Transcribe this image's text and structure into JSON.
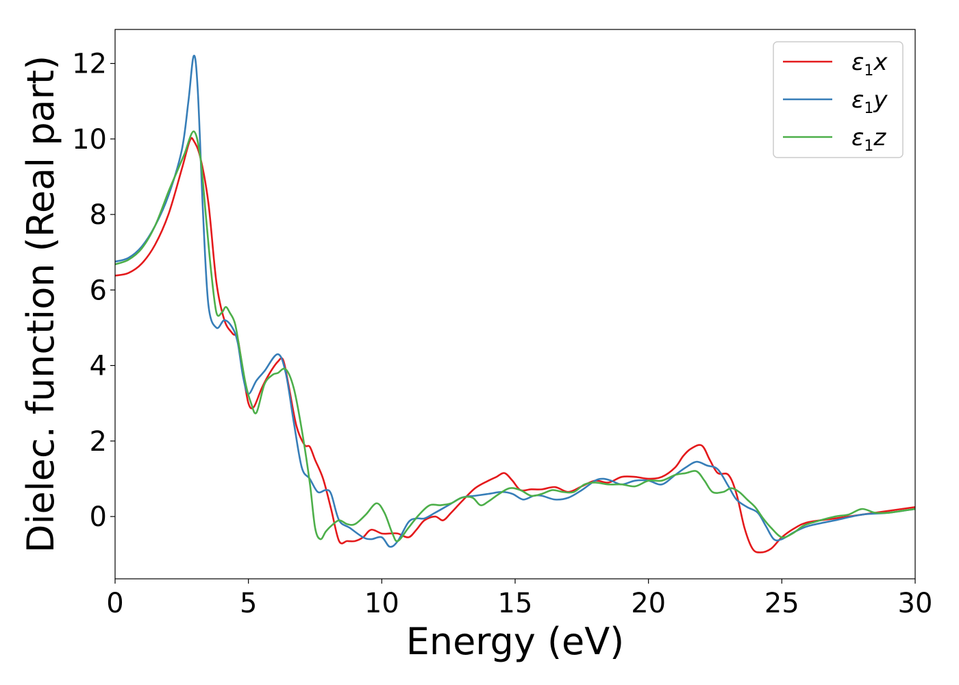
{
  "chart_data": {
    "type": "line",
    "xlabel": "Energy (eV)",
    "ylabel": "Dielec. function (Real part)",
    "xlim": [
      0,
      30
    ],
    "ylim": [
      -1.65,
      12.9
    ],
    "xticks": [
      "0",
      "5",
      "10",
      "15",
      "20",
      "25",
      "30"
    ],
    "yticks": [
      "0",
      "2",
      "4",
      "6",
      "8",
      "10",
      "12"
    ],
    "grid": false,
    "legend_position": "top-right",
    "series": [
      {
        "name": "ε1x",
        "legend_base": "ε",
        "legend_sub": "1",
        "legend_var": "x",
        "color": "#e41a1c",
        "points": [
          [
            0,
            6.38
          ],
          [
            0.5,
            6.45
          ],
          [
            1.0,
            6.7
          ],
          [
            1.5,
            7.2
          ],
          [
            2.0,
            8.0
          ],
          [
            2.5,
            9.2
          ],
          [
            2.8,
            9.95
          ],
          [
            2.95,
            9.95
          ],
          [
            3.2,
            9.5
          ],
          [
            3.5,
            8.3
          ],
          [
            3.8,
            6.2
          ],
          [
            4.1,
            5.2
          ],
          [
            4.4,
            4.85
          ],
          [
            4.6,
            4.7
          ],
          [
            4.8,
            3.8
          ],
          [
            5.0,
            3.0
          ],
          [
            5.2,
            2.9
          ],
          [
            5.5,
            3.4
          ],
          [
            5.8,
            3.8
          ],
          [
            6.1,
            4.1
          ],
          [
            6.3,
            4.15
          ],
          [
            6.5,
            3.5
          ],
          [
            6.8,
            2.4
          ],
          [
            7.1,
            1.9
          ],
          [
            7.3,
            1.85
          ],
          [
            7.5,
            1.5
          ],
          [
            7.8,
            1.0
          ],
          [
            8.1,
            0.2
          ],
          [
            8.4,
            -0.65
          ],
          [
            8.7,
            -0.65
          ],
          [
            9.0,
            -0.65
          ],
          [
            9.3,
            -0.55
          ],
          [
            9.6,
            -0.35
          ],
          [
            10.0,
            -0.45
          ],
          [
            10.3,
            -0.45
          ],
          [
            10.6,
            -0.45
          ],
          [
            11.0,
            -0.55
          ],
          [
            11.3,
            -0.35
          ],
          [
            11.6,
            -0.1
          ],
          [
            12.0,
            0.0
          ],
          [
            12.3,
            -0.1
          ],
          [
            12.6,
            0.1
          ],
          [
            13.0,
            0.4
          ],
          [
            13.5,
            0.75
          ],
          [
            14.0,
            0.95
          ],
          [
            14.3,
            1.05
          ],
          [
            14.6,
            1.15
          ],
          [
            14.9,
            0.95
          ],
          [
            15.2,
            0.7
          ],
          [
            15.6,
            0.72
          ],
          [
            16.0,
            0.72
          ],
          [
            16.5,
            0.78
          ],
          [
            17.0,
            0.65
          ],
          [
            17.5,
            0.8
          ],
          [
            18.0,
            0.95
          ],
          [
            18.5,
            0.9
          ],
          [
            19.0,
            1.05
          ],
          [
            19.5,
            1.05
          ],
          [
            20.0,
            1.0
          ],
          [
            20.5,
            1.05
          ],
          [
            21.0,
            1.3
          ],
          [
            21.3,
            1.6
          ],
          [
            21.6,
            1.8
          ],
          [
            22.0,
            1.88
          ],
          [
            22.3,
            1.5
          ],
          [
            22.6,
            1.15
          ],
          [
            23.0,
            1.1
          ],
          [
            23.3,
            0.6
          ],
          [
            23.6,
            -0.3
          ],
          [
            23.9,
            -0.85
          ],
          [
            24.2,
            -0.95
          ],
          [
            24.6,
            -0.85
          ],
          [
            25.0,
            -0.55
          ],
          [
            25.5,
            -0.3
          ],
          [
            26.0,
            -0.15
          ],
          [
            27.0,
            -0.05
          ],
          [
            28.0,
            0.05
          ],
          [
            29.0,
            0.15
          ],
          [
            30.0,
            0.25
          ]
        ]
      },
      {
        "name": "ε1y",
        "legend_base": "ε",
        "legend_sub": "1",
        "legend_var": "y",
        "color": "#377eb8",
        "points": [
          [
            0,
            6.75
          ],
          [
            0.5,
            6.85
          ],
          [
            1.0,
            7.15
          ],
          [
            1.5,
            7.7
          ],
          [
            2.0,
            8.5
          ],
          [
            2.5,
            9.7
          ],
          [
            2.75,
            11.0
          ],
          [
            2.95,
            12.2
          ],
          [
            3.1,
            11.3
          ],
          [
            3.3,
            8.0
          ],
          [
            3.5,
            5.6
          ],
          [
            3.8,
            5.0
          ],
          [
            4.1,
            5.2
          ],
          [
            4.4,
            5.0
          ],
          [
            4.6,
            4.6
          ],
          [
            4.8,
            3.7
          ],
          [
            5.0,
            3.25
          ],
          [
            5.3,
            3.6
          ],
          [
            5.6,
            3.85
          ],
          [
            6.1,
            4.3
          ],
          [
            6.4,
            3.8
          ],
          [
            6.7,
            2.5
          ],
          [
            7.0,
            1.3
          ],
          [
            7.3,
            1.0
          ],
          [
            7.6,
            0.65
          ],
          [
            7.9,
            0.7
          ],
          [
            8.1,
            0.6
          ],
          [
            8.4,
            -0.1
          ],
          [
            8.8,
            -0.3
          ],
          [
            9.3,
            -0.55
          ],
          [
            9.6,
            -0.6
          ],
          [
            10.0,
            -0.55
          ],
          [
            10.3,
            -0.8
          ],
          [
            10.6,
            -0.65
          ],
          [
            11.0,
            -0.15
          ],
          [
            11.3,
            -0.05
          ],
          [
            11.6,
            -0.05
          ],
          [
            12.0,
            0.1
          ],
          [
            12.5,
            0.3
          ],
          [
            13.0,
            0.5
          ],
          [
            13.5,
            0.55
          ],
          [
            14.0,
            0.6
          ],
          [
            14.5,
            0.65
          ],
          [
            14.9,
            0.6
          ],
          [
            15.3,
            0.45
          ],
          [
            15.7,
            0.55
          ],
          [
            16.0,
            0.55
          ],
          [
            16.5,
            0.45
          ],
          [
            17.0,
            0.5
          ],
          [
            17.5,
            0.7
          ],
          [
            18.0,
            0.95
          ],
          [
            18.3,
            1.0
          ],
          [
            18.6,
            0.95
          ],
          [
            19.0,
            0.85
          ],
          [
            19.5,
            0.95
          ],
          [
            20.0,
            0.95
          ],
          [
            20.5,
            0.85
          ],
          [
            21.0,
            1.1
          ],
          [
            21.4,
            1.3
          ],
          [
            21.8,
            1.45
          ],
          [
            22.2,
            1.35
          ],
          [
            22.6,
            1.25
          ],
          [
            23.0,
            0.8
          ],
          [
            23.3,
            0.45
          ],
          [
            23.7,
            0.25
          ],
          [
            24.1,
            0.1
          ],
          [
            24.4,
            -0.25
          ],
          [
            24.7,
            -0.6
          ],
          [
            25.0,
            -0.6
          ],
          [
            25.5,
            -0.4
          ],
          [
            26.0,
            -0.25
          ],
          [
            27.0,
            -0.1
          ],
          [
            28.0,
            0.05
          ],
          [
            29.0,
            0.1
          ],
          [
            30.0,
            0.2
          ]
        ]
      },
      {
        "name": "ε1z",
        "legend_base": "ε",
        "legend_sub": "1",
        "legend_var": "z",
        "color": "#4daf4a",
        "points": [
          [
            0,
            6.68
          ],
          [
            0.5,
            6.8
          ],
          [
            1.0,
            7.1
          ],
          [
            1.5,
            7.7
          ],
          [
            2.0,
            8.6
          ],
          [
            2.3,
            9.1
          ],
          [
            2.6,
            9.6
          ],
          [
            2.95,
            10.2
          ],
          [
            3.2,
            9.5
          ],
          [
            3.4,
            8.0
          ],
          [
            3.6,
            6.5
          ],
          [
            3.8,
            5.4
          ],
          [
            4.0,
            5.4
          ],
          [
            4.15,
            5.55
          ],
          [
            4.3,
            5.4
          ],
          [
            4.5,
            5.1
          ],
          [
            4.7,
            4.3
          ],
          [
            4.9,
            3.5
          ],
          [
            5.1,
            3.0
          ],
          [
            5.3,
            2.75
          ],
          [
            5.6,
            3.5
          ],
          [
            5.9,
            3.75
          ],
          [
            6.1,
            3.8
          ],
          [
            6.4,
            3.9
          ],
          [
            6.7,
            3.4
          ],
          [
            7.0,
            2.3
          ],
          [
            7.3,
            0.9
          ],
          [
            7.5,
            -0.3
          ],
          [
            7.7,
            -0.6
          ],
          [
            7.9,
            -0.4
          ],
          [
            8.1,
            -0.25
          ],
          [
            8.4,
            -0.1
          ],
          [
            8.7,
            -0.2
          ],
          [
            9.0,
            -0.2
          ],
          [
            9.4,
            0.05
          ],
          [
            9.8,
            0.35
          ],
          [
            10.1,
            0.1
          ],
          [
            10.4,
            -0.45
          ],
          [
            10.6,
            -0.65
          ],
          [
            11.0,
            -0.3
          ],
          [
            11.4,
            0.05
          ],
          [
            11.8,
            0.3
          ],
          [
            12.2,
            0.3
          ],
          [
            12.6,
            0.35
          ],
          [
            13.0,
            0.5
          ],
          [
            13.4,
            0.5
          ],
          [
            13.7,
            0.3
          ],
          [
            14.0,
            0.4
          ],
          [
            14.4,
            0.6
          ],
          [
            14.8,
            0.75
          ],
          [
            15.2,
            0.7
          ],
          [
            15.6,
            0.55
          ],
          [
            16.0,
            0.6
          ],
          [
            16.4,
            0.7
          ],
          [
            16.8,
            0.65
          ],
          [
            17.2,
            0.65
          ],
          [
            17.6,
            0.85
          ],
          [
            18.0,
            0.9
          ],
          [
            18.5,
            0.85
          ],
          [
            19.0,
            0.85
          ],
          [
            19.5,
            0.8
          ],
          [
            20.0,
            0.95
          ],
          [
            20.5,
            0.95
          ],
          [
            21.0,
            1.1
          ],
          [
            21.4,
            1.15
          ],
          [
            21.8,
            1.2
          ],
          [
            22.1,
            0.95
          ],
          [
            22.4,
            0.65
          ],
          [
            22.8,
            0.65
          ],
          [
            23.1,
            0.75
          ],
          [
            23.4,
            0.65
          ],
          [
            23.7,
            0.45
          ],
          [
            24.0,
            0.25
          ],
          [
            24.3,
            -0.05
          ],
          [
            24.6,
            -0.3
          ],
          [
            25.0,
            -0.55
          ],
          [
            25.4,
            -0.45
          ],
          [
            25.8,
            -0.25
          ],
          [
            26.2,
            -0.15
          ],
          [
            27.0,
            0.0
          ],
          [
            27.5,
            0.05
          ],
          [
            28.0,
            0.2
          ],
          [
            28.5,
            0.1
          ],
          [
            29.0,
            0.1
          ],
          [
            29.5,
            0.15
          ],
          [
            30.0,
            0.2
          ]
        ]
      }
    ]
  }
}
